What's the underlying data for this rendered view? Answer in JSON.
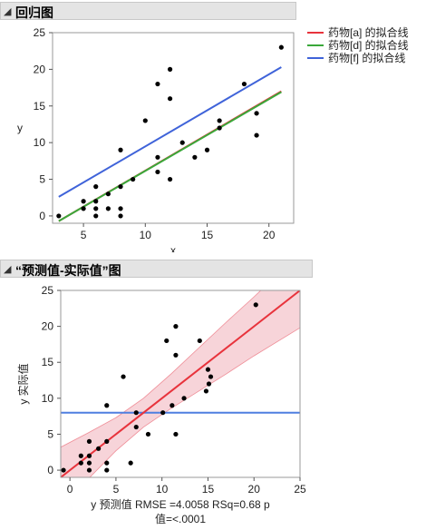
{
  "panels": {
    "regression": {
      "title": "回归图",
      "collapse_icon": "disclosure-triangle-icon"
    },
    "pred_actual": {
      "title": "“预测值-实际值”图",
      "collapse_icon": "disclosure-triangle-icon"
    }
  },
  "chart_data": [
    {
      "type": "scatter",
      "title": "",
      "xlabel": "x",
      "ylabel": "y",
      "xlim": [
        2.5,
        22
      ],
      "ylim": [
        -1,
        25
      ],
      "xticks": [
        5,
        10,
        15,
        20
      ],
      "yticks": [
        0,
        5,
        10,
        15,
        20,
        25
      ],
      "grid": false,
      "legend_position": "top-right",
      "points": [
        [
          3,
          0
        ],
        [
          5,
          1
        ],
        [
          5,
          2
        ],
        [
          6,
          0
        ],
        [
          6,
          1
        ],
        [
          6,
          2
        ],
        [
          6,
          4
        ],
        [
          7,
          1
        ],
        [
          7,
          3
        ],
        [
          8,
          0
        ],
        [
          8,
          1
        ],
        [
          8,
          4
        ],
        [
          8,
          9
        ],
        [
          9,
          5
        ],
        [
          10,
          13
        ],
        [
          11,
          6
        ],
        [
          11,
          8
        ],
        [
          11,
          18
        ],
        [
          12,
          5
        ],
        [
          12,
          16
        ],
        [
          12,
          20
        ],
        [
          13,
          10
        ],
        [
          14,
          8
        ],
        [
          15,
          9
        ],
        [
          16,
          12
        ],
        [
          16,
          13
        ],
        [
          18,
          18
        ],
        [
          19,
          11
        ],
        [
          19,
          14
        ],
        [
          21,
          23
        ]
      ],
      "series": [
        {
          "name": "药物[a] 的拟合线",
          "color": "#e8333c",
          "x": [
            3,
            21
          ],
          "y": [
            -0.7,
            17.0
          ]
        },
        {
          "name": "药物[d] 的拟合线",
          "color": "#3aa83a",
          "x": [
            3,
            21
          ],
          "y": [
            -0.7,
            16.9
          ]
        },
        {
          "name": "药物[f] 的拟合线",
          "color": "#3f63d9",
          "x": [
            3,
            21
          ],
          "y": [
            2.6,
            20.3
          ]
        }
      ]
    },
    {
      "type": "scatter",
      "title": "",
      "xlabel": "y 预测值 RMSE =4.0058 RSq=0.68 p 值=<.0001",
      "ylabel": "y 实际值",
      "xlim": [
        -1,
        25
      ],
      "ylim": [
        -1,
        25
      ],
      "xticks": [
        0,
        5,
        10,
        15,
        20,
        25
      ],
      "yticks": [
        0,
        5,
        10,
        15,
        20,
        25
      ],
      "grid": false,
      "points": [
        [
          -0.7,
          0
        ],
        [
          1.2,
          1
        ],
        [
          1.2,
          2
        ],
        [
          2.1,
          0
        ],
        [
          2.1,
          1
        ],
        [
          2.1,
          2
        ],
        [
          2.1,
          4
        ],
        [
          3.1,
          3
        ],
        [
          4,
          0
        ],
        [
          4,
          1
        ],
        [
          4,
          4
        ],
        [
          4,
          9
        ],
        [
          5.8,
          13
        ],
        [
          6.6,
          1
        ],
        [
          7.2,
          8
        ],
        [
          7.2,
          6
        ],
        [
          8.5,
          5
        ],
        [
          10.1,
          8
        ],
        [
          10.5,
          18
        ],
        [
          11.1,
          9
        ],
        [
          11.5,
          5
        ],
        [
          11.5,
          16
        ],
        [
          11.5,
          20
        ],
        [
          12.4,
          10
        ],
        [
          14.1,
          18
        ],
        [
          14.8,
          11
        ],
        [
          15,
          14
        ],
        [
          15.1,
          12
        ],
        [
          15.3,
          13
        ],
        [
          20.2,
          23
        ]
      ],
      "fit_line": {
        "x": [
          -1,
          25
        ],
        "y": [
          -1,
          25
        ],
        "color": "#e8333c"
      },
      "mean_line": {
        "y": 8.0,
        "color": "#4f7fe0"
      },
      "confidence_band": {
        "color": "#f6cdd2",
        "x": [
          -1,
          2,
          5,
          8,
          11,
          14,
          17,
          20,
          25
        ],
        "lower": [
          -5.2,
          -1.2,
          2.7,
          6.0,
          8.6,
          11.0,
          13.4,
          15.9,
          19.8
        ],
        "upper": [
          3.2,
          5.2,
          7.3,
          10.0,
          13.4,
          17.0,
          20.6,
          24.1,
          30.2
        ]
      }
    }
  ]
}
